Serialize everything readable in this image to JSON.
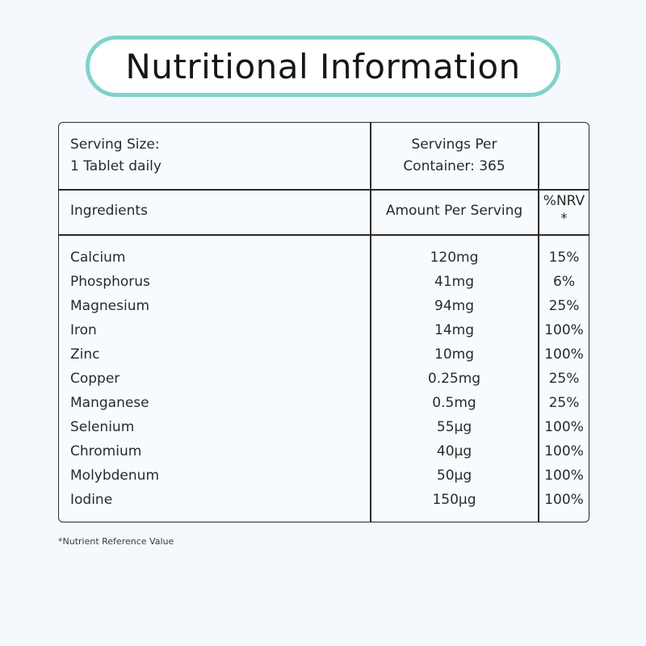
{
  "title": "Nutritional Information",
  "colors": {
    "accent": "#7fd3c9",
    "background": "#f5f9fd",
    "border": "#2a2a2a"
  },
  "table": {
    "serving_size_line1": "Serving Size:",
    "serving_size_line2": "1 Tablet daily",
    "servings_per_line1": "Servings Per",
    "servings_per_line2": "Container: 365",
    "headers": {
      "ingredients": "Ingredients",
      "amount": "Amount Per Serving",
      "nrv_line1": "%NRV",
      "nrv_line2": "*"
    },
    "rows": [
      {
        "name": "Calcium",
        "amount": "120mg",
        "nrv": "15%"
      },
      {
        "name": "Phosphorus",
        "amount": "41mg",
        "nrv": "6%"
      },
      {
        "name": "Magnesium",
        "amount": "94mg",
        "nrv": "25%"
      },
      {
        "name": "Iron",
        "amount": "14mg",
        "nrv": "100%"
      },
      {
        "name": "Zinc",
        "amount": "10mg",
        "nrv": "100%"
      },
      {
        "name": "Copper",
        "amount": "0.25mg",
        "nrv": "25%"
      },
      {
        "name": "Manganese",
        "amount": "0.5mg",
        "nrv": "25%"
      },
      {
        "name": "Selenium",
        "amount": "55µg",
        "nrv": "100%"
      },
      {
        "name": "Chromium",
        "amount": "40µg",
        "nrv": "100%"
      },
      {
        "name": "Molybdenum",
        "amount": "50µg",
        "nrv": "100%"
      },
      {
        "name": "Iodine",
        "amount": "150µg",
        "nrv": "100%"
      }
    ]
  },
  "footnote": "*Nutrient Reference Value"
}
